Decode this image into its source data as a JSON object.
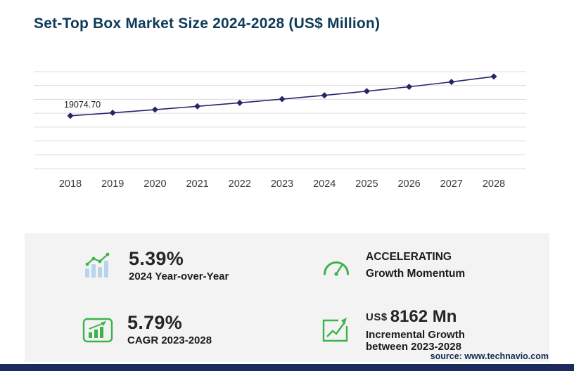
{
  "title": "Set-Top Box Market Size 2024-2028 (US$ Million)",
  "source": "source: www.technavio.com",
  "colors": {
    "title": "#0d3b58",
    "line": "#26266b",
    "accent_green": "#3cb44a",
    "panel_bg": "#f3f3f3",
    "footer_bar": "#1b2b5e"
  },
  "chart_data": {
    "type": "line",
    "title": "Set-Top Box Market Size 2024-2028 (US$ Million)",
    "x": [
      "2018",
      "2019",
      "2020",
      "2021",
      "2022",
      "2023",
      "2024",
      "2025",
      "2026",
      "2027",
      "2028"
    ],
    "values": [
      19074.7,
      20150,
      21300,
      22500,
      23750,
      25100,
      26450,
      27950,
      29550,
      31300,
      33250
    ],
    "first_point_label": "19074.70",
    "xlabel": "",
    "ylabel": "",
    "ylim": [
      0,
      35000
    ],
    "grid_step": 5000,
    "grid": true,
    "legend": "none",
    "line_color": "#26266b",
    "grid_color": "#dcdcdc",
    "tick_color": "#3c3c3c"
  },
  "stats": {
    "yoy": {
      "icon": "bar-chart-growth-icon",
      "value": "5.39%",
      "label": "2024 Year-over-Year"
    },
    "momentum": {
      "icon": "speedometer-icon",
      "line1": "ACCELERATING",
      "line2": "Growth Momentum"
    },
    "cagr": {
      "icon": "boxed-bar-chart-icon",
      "value": "5.79%",
      "label": "CAGR 2023-2028"
    },
    "incremental": {
      "icon": "growth-arrow-box-icon",
      "currency": "US$",
      "value": "8162 Mn",
      "label_line1": "Incremental Growth",
      "label_line2": "between 2023-2028"
    }
  }
}
